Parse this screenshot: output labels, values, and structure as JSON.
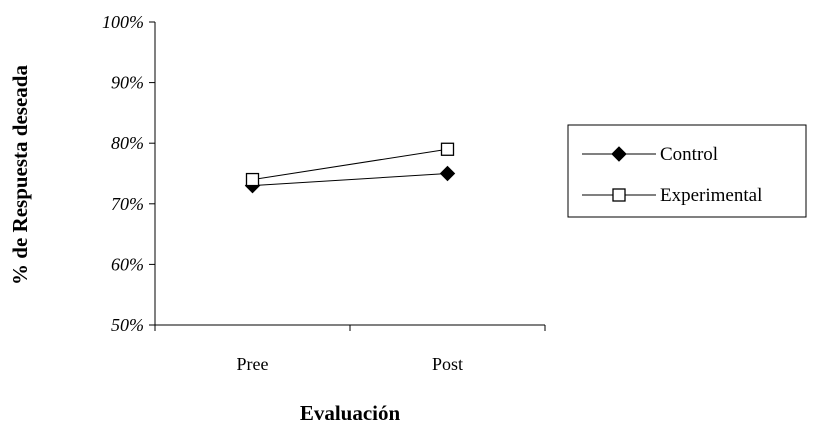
{
  "chart_data": {
    "type": "line",
    "categories": [
      "Pree",
      "Post"
    ],
    "series": [
      {
        "name": "Control",
        "values": [
          73,
          75
        ],
        "marker": "diamond-filled",
        "color": "#000000"
      },
      {
        "name": "Experimental",
        "values": [
          74,
          79
        ],
        "marker": "square-open",
        "color": "#000000"
      }
    ],
    "title": "",
    "xlabel": "Evaluación",
    "ylabel": "% de Respuesta deseada",
    "ylim": [
      50,
      100
    ],
    "yticks": [
      50,
      60,
      70,
      80,
      90,
      100
    ],
    "ytick_labels": [
      "50%",
      "60%",
      "70%",
      "80%",
      "90%",
      "100%"
    ],
    "grid": false,
    "legend_position": "right"
  }
}
